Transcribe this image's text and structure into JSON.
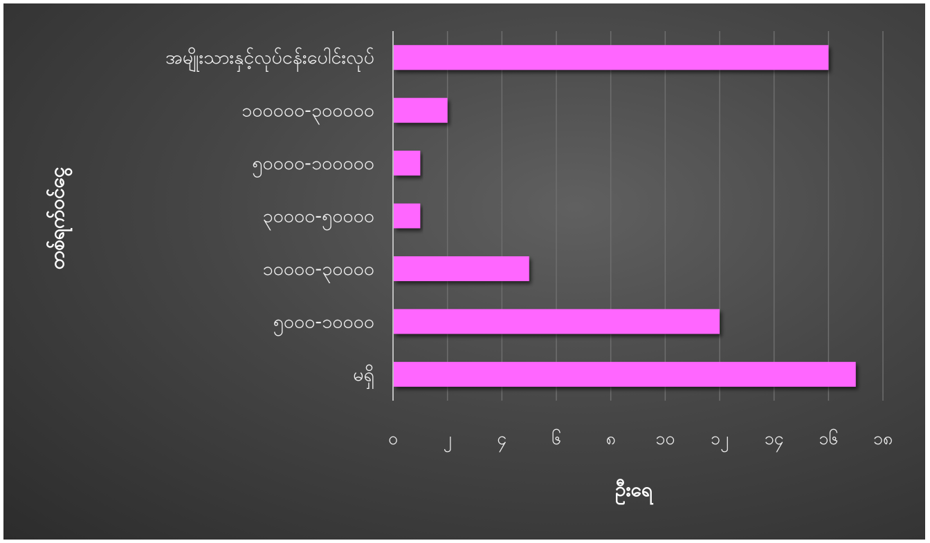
{
  "chart_data": {
    "type": "bar",
    "orientation": "horizontal",
    "categories": [
      "အမျိုးသားနှင့်လုပ်ငန်းပေါင်းလုပ်",
      "၁၀၀၀၀၀-၃၀၀၀၀၀",
      "၅၀၀၀၀-၁၀၀၀၀၀",
      "၃၀၀၀၀-၅၀၀၀၀",
      "၁၀၀၀၀-၃၀၀၀၀",
      "၅၀၀၀-၁၀၀၀၀",
      "မရှိ"
    ],
    "values": [
      16,
      2,
      1,
      1,
      5,
      12,
      17
    ],
    "xlim": [
      0,
      18
    ],
    "x_ticks": [
      0,
      2,
      4,
      6,
      8,
      10,
      12,
      14,
      16,
      18
    ],
    "x_tick_labels": [
      "၀",
      "၂",
      "၄",
      "၆",
      "၈",
      "၁၀",
      "၁၂",
      "၁၄",
      "၁၆",
      "၁၈"
    ],
    "xlabel": "ဦးရေ",
    "ylabel": "တစ်ရက်ဝင်ငွေ",
    "title": "",
    "grid": "vertical",
    "legend": "none",
    "bar_color": "#ff66ff",
    "gridline_color": "#6e6e6e",
    "axis_line_color": "#bdbdbd",
    "text_color": "#f0f0f0"
  }
}
